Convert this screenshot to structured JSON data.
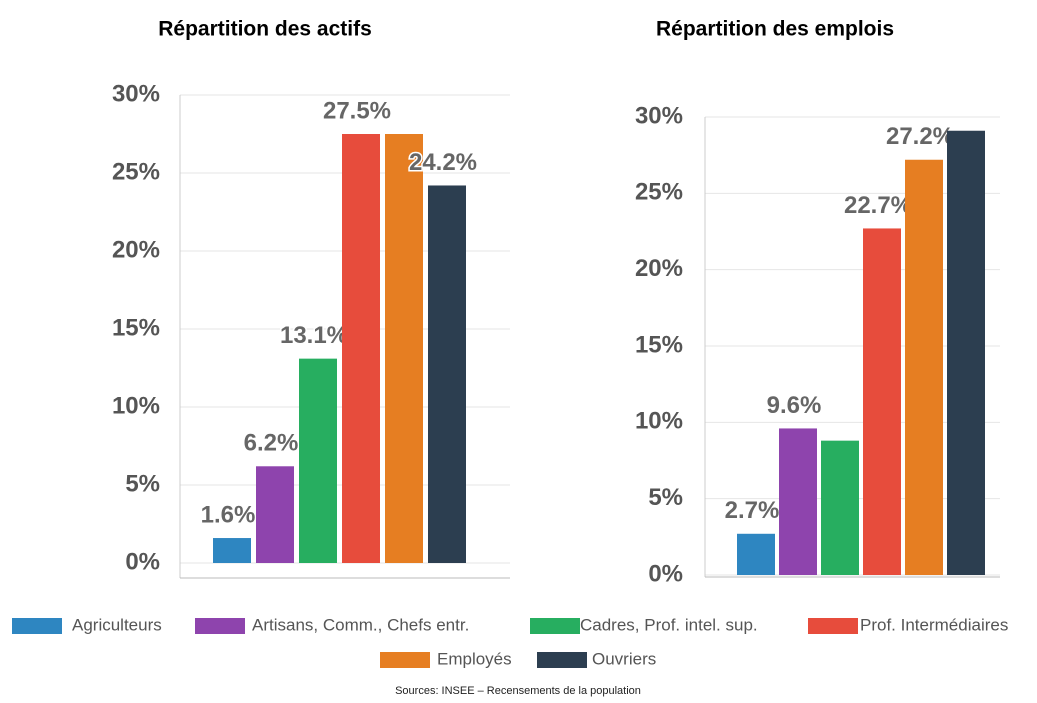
{
  "chart_data": [
    {
      "type": "bar",
      "title": "Répartition des actifs",
      "categories": [
        "Agriculteurs",
        "Artisans, Comm., Chefs entr.",
        "Cadres, Prof. intel. sup.",
        "Prof. Intermédiaires",
        "Employés",
        "Ouvriers"
      ],
      "values": [
        1.6,
        6.2,
        13.1,
        27.5,
        27.5,
        24.2
      ],
      "value_labels": [
        "1.6%",
        "6.2%",
        "13.1%",
        "27.5%",
        null,
        "24.2%"
      ],
      "colors": [
        "#2e86c1",
        "#8e44ad",
        "#27ae60",
        "#e74c3c",
        "#e67e22",
        "#2c3e50"
      ],
      "ylim": [
        0,
        30
      ],
      "yticks": [
        {
          "value": 0,
          "label": "0%"
        },
        {
          "value": 5,
          "label": "5%"
        },
        {
          "value": 10,
          "label": "10%"
        },
        {
          "value": 15,
          "label": "15%"
        },
        {
          "value": 20,
          "label": "20%"
        },
        {
          "value": 25,
          "label": "25%"
        },
        {
          "value": 30,
          "label": "30%"
        }
      ],
      "grid": true
    },
    {
      "type": "bar",
      "title": "Répartition des emplois",
      "categories": [
        "Agriculteurs",
        "Artisans, Comm., Chefs entr.",
        "Cadres, Prof. intel. sup.",
        "Prof. Intermédiaires",
        "Employés",
        "Ouvriers"
      ],
      "values": [
        2.7,
        9.6,
        8.8,
        22.7,
        27.2,
        29.1
      ],
      "value_labels": [
        "2.7%",
        "9.6%",
        null,
        "22.7%",
        "27.2%",
        null
      ],
      "colors": [
        "#2e86c1",
        "#8e44ad",
        "#27ae60",
        "#e74c3c",
        "#e67e22",
        "#2c3e50"
      ],
      "ylim": [
        0,
        30
      ],
      "yticks": [
        {
          "value": 0,
          "label": "0%"
        },
        {
          "value": 5,
          "label": "5%"
        },
        {
          "value": 10,
          "label": "10%"
        },
        {
          "value": 15,
          "label": "15%"
        },
        {
          "value": 20,
          "label": "20%"
        },
        {
          "value": 25,
          "label": "25%"
        },
        {
          "value": 30,
          "label": "30%"
        }
      ],
      "grid": true
    }
  ],
  "source": "Sources: INSEE – Recensements de la population"
}
